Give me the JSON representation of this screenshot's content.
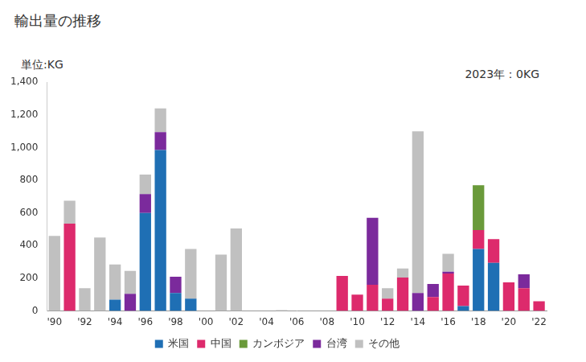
{
  "chart_data": {
    "type": "bar",
    "title": "輸出量の推移",
    "ylabel": "単位:KG",
    "annotations": [
      "2023年：0KG"
    ],
    "categories": [
      "'90",
      null,
      "'92",
      null,
      "'94",
      null,
      "'96",
      null,
      "'98",
      null,
      "'00",
      null,
      "'02",
      null,
      "'04",
      null,
      "'06",
      null,
      "'08",
      null,
      "'10",
      null,
      "'12",
      null,
      "'14",
      null,
      "'16",
      null,
      "'18",
      null,
      "'20",
      null,
      "'22"
    ],
    "series": [
      {
        "name": "米国",
        "color": "#1f6fb4",
        "values": [
          0,
          0,
          0,
          0,
          70,
          0,
          600,
          985,
          110,
          75,
          0,
          0,
          0,
          0,
          0,
          0,
          0,
          0,
          0,
          0,
          0,
          0,
          0,
          0,
          0,
          0,
          0,
          30,
          380,
          295,
          0,
          0,
          0
        ]
      },
      {
        "name": "中国",
        "color": "#dd2a6c",
        "values": [
          0,
          535,
          0,
          0,
          0,
          0,
          0,
          0,
          0,
          0,
          0,
          0,
          0,
          0,
          0,
          0,
          0,
          0,
          0,
          215,
          100,
          160,
          75,
          205,
          0,
          85,
          230,
          125,
          115,
          145,
          175,
          140,
          60
        ]
      },
      {
        "name": "カンボジア",
        "color": "#6a9a3a",
        "values": [
          0,
          0,
          0,
          0,
          0,
          0,
          0,
          0,
          0,
          0,
          0,
          0,
          0,
          0,
          0,
          0,
          0,
          0,
          0,
          0,
          0,
          0,
          0,
          0,
          0,
          0,
          0,
          0,
          275,
          0,
          0,
          0,
          0
        ]
      },
      {
        "name": "台湾",
        "color": "#7b2a9c",
        "values": [
          0,
          0,
          0,
          0,
          0,
          105,
          115,
          110,
          100,
          0,
          0,
          0,
          0,
          0,
          0,
          0,
          0,
          0,
          0,
          0,
          0,
          410,
          0,
          0,
          110,
          80,
          10,
          0,
          0,
          0,
          0,
          85,
          0
        ]
      },
      {
        "name": "その他",
        "color": "#c0c0c0",
        "values": [
          460,
          140,
          140,
          450,
          215,
          140,
          120,
          145,
          0,
          305,
          0,
          345,
          505,
          0,
          0,
          5,
          0,
          0,
          0,
          0,
          0,
          0,
          65,
          55,
          990,
          0,
          110,
          0,
          0,
          0,
          0,
          0,
          0
        ]
      }
    ],
    "ylim": [
      0,
      1400
    ],
    "yticks": [
      0,
      200,
      400,
      600,
      800,
      {
        "value": 1000,
        "label": "1,000"
      },
      {
        "value": 1200,
        "label": "1,200"
      },
      {
        "value": 1400,
        "label": "1,400"
      }
    ],
    "stacked": true,
    "legend": "bottom",
    "grid": false
  }
}
